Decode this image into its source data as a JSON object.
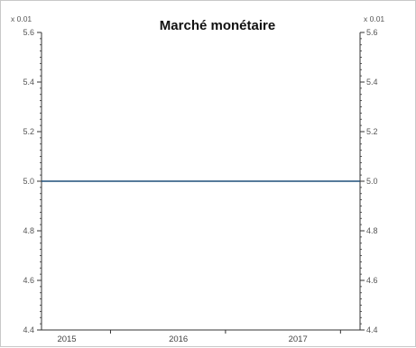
{
  "chart_data": {
    "type": "line",
    "title": "Marché monétaire",
    "y_scale_note_left": "x 0.01",
    "y_scale_note_right": "x 0.01",
    "xlabel": "",
    "ylabel": "",
    "x_ticks": [
      "2015",
      "2016",
      "2017"
    ],
    "x_range": [
      2014.73,
      2017.5
    ],
    "ylim": [
      4.4,
      5.6
    ],
    "y_ticks": [
      "4.4",
      "4.6",
      "4.8",
      "5.0",
      "5.2",
      "5.4",
      "5.6"
    ],
    "y_tick_values": [
      4.4,
      4.6,
      4.8,
      5.0,
      5.2,
      5.4,
      5.6
    ],
    "grid": false,
    "legend": "none",
    "series": [
      {
        "x": [
          2014.73,
          2017.5
        ],
        "values": [
          5.0,
          5.0
        ],
        "color": "#1f4e79"
      }
    ]
  }
}
